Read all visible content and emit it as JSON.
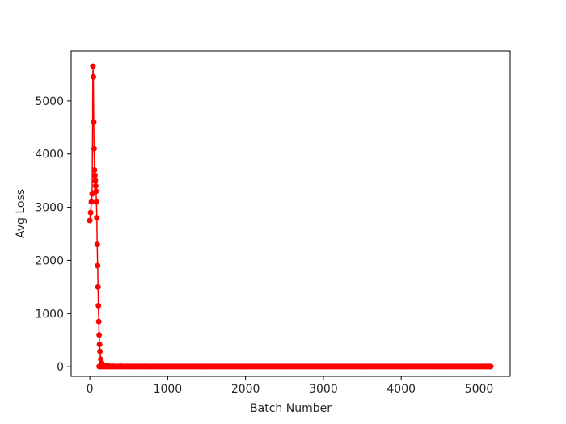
{
  "chart_data": {
    "type": "line",
    "title": "",
    "xlabel": "Batch Number",
    "ylabel": "Avg Loss",
    "xlim": [
      -240,
      5400
    ],
    "ylim": [
      -180,
      5940
    ],
    "x_ticks": [
      0,
      1000,
      2000,
      3000,
      4000,
      5000
    ],
    "x_tick_labels": [
      "0",
      "1000",
      "2000",
      "3000",
      "4000",
      "5000"
    ],
    "y_ticks": [
      0,
      1000,
      2000,
      3000,
      4000,
      5000
    ],
    "y_tick_labels": [
      "0",
      "1000",
      "2000",
      "3000",
      "4000",
      "5000"
    ],
    "grid": false,
    "legend": false,
    "series": [
      {
        "color": "#ff0000",
        "marker": "circle",
        "x": [
          0,
          10,
          20,
          30,
          40,
          45,
          50,
          55,
          60,
          65,
          70,
          75,
          80,
          85,
          90,
          95,
          100,
          105,
          110,
          115,
          120,
          125,
          130,
          140,
          150,
          160,
          170,
          180,
          190,
          200,
          220,
          250,
          300,
          400,
          500,
          700,
          1000,
          1500,
          2000,
          2500,
          3000,
          3500,
          4000,
          4500,
          5000,
          5150
        ],
        "y": [
          2750,
          2900,
          3100,
          3250,
          5650,
          5450,
          4600,
          4100,
          3700,
          3600,
          3500,
          3400,
          3300,
          3100,
          2800,
          2300,
          1900,
          1500,
          1150,
          850,
          600,
          420,
          290,
          140,
          75,
          40,
          25,
          18,
          14,
          12,
          10,
          9,
          8,
          7,
          6,
          6,
          5,
          5,
          5,
          5,
          5,
          5,
          5,
          5,
          5,
          5
        ]
      }
    ]
  }
}
